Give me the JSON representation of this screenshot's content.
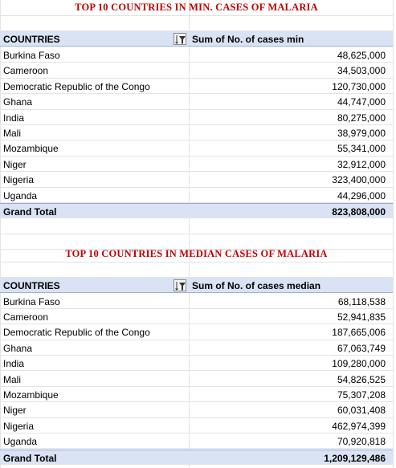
{
  "table1": {
    "title": "TOP 10 COUNTRIES IN MIN. CASES OF MALARIA",
    "header_countries": "COUNTRIES",
    "header_value": "Sum of No. of cases min",
    "rows": [
      {
        "country": "Burkina Faso",
        "value": "48,625,000"
      },
      {
        "country": "Cameroon",
        "value": "34,503,000"
      },
      {
        "country": "Democratic Republic of the Congo",
        "value": "120,730,000"
      },
      {
        "country": "Ghana",
        "value": "44,747,000"
      },
      {
        "country": "India",
        "value": "80,275,000"
      },
      {
        "country": "Mali",
        "value": "38,979,000"
      },
      {
        "country": "Mozambique",
        "value": "55,341,000"
      },
      {
        "country": "Niger",
        "value": "32,912,000"
      },
      {
        "country": "Nigeria",
        "value": "323,400,000"
      },
      {
        "country": "Uganda",
        "value": "44,296,000"
      }
    ],
    "total_label": "Grand Total",
    "total_value": "823,808,000"
  },
  "table2": {
    "title": "TOP 10 COUNTRIES IN MEDIAN CASES OF MALARIA",
    "header_countries": "COUNTRIES",
    "header_value": "Sum of No. of cases median",
    "rows": [
      {
        "country": "Burkina Faso",
        "value": "68,118,538"
      },
      {
        "country": "Cameroon",
        "value": "52,941,835"
      },
      {
        "country": "Democratic Republic of the Congo",
        "value": "187,665,006"
      },
      {
        "country": "Ghana",
        "value": "67,063,749"
      },
      {
        "country": "India",
        "value": "109,280,000"
      },
      {
        "country": "Mali",
        "value": "54,826,525"
      },
      {
        "country": "Mozambique",
        "value": "75,307,208"
      },
      {
        "country": "Niger",
        "value": "60,031,408"
      },
      {
        "country": "Nigeria",
        "value": "462,974,399"
      },
      {
        "country": "Uganda",
        "value": "70,920,818"
      }
    ],
    "total_label": "Grand Total",
    "total_value": "1,209,129,486"
  },
  "icons": {
    "filter": "filter-sort-icon"
  },
  "colors": {
    "title": "#c00000",
    "header_bg": "#dae3f3"
  }
}
